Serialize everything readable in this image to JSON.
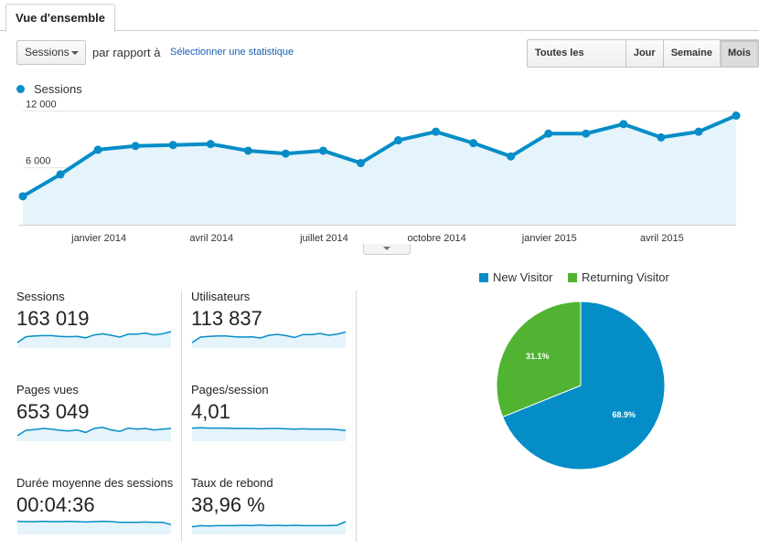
{
  "tab": {
    "label": "Vue d'ensemble"
  },
  "toolbar": {
    "metric_select": "Sessions",
    "compare_label": "par rapport à",
    "compare_link": "Sélectionner une statistique",
    "granularity": [
      {
        "label": "Toutes les heures",
        "active": false
      },
      {
        "label": "Jour",
        "active": false
      },
      {
        "label": "Semaine",
        "active": false
      },
      {
        "label": "Mois",
        "active": true
      }
    ]
  },
  "colors": {
    "accent": "#058dc7",
    "area": "#e5f3fa",
    "green": "#50b432"
  },
  "chart_data": [
    {
      "type": "line",
      "legend": "Sessions",
      "y_ticks": [
        {
          "value": 12000,
          "label": "12 000"
        },
        {
          "value": 6000,
          "label": "6 000"
        }
      ],
      "ylim": [
        0,
        12800
      ],
      "x_tick_labels": [
        {
          "index": 2,
          "label": "janvier 2014"
        },
        {
          "index": 5,
          "label": "avril 2014"
        },
        {
          "index": 8,
          "label": "juillet 2014"
        },
        {
          "index": 11,
          "label": "octobre 2014"
        },
        {
          "index": 14,
          "label": "janvier 2015"
        },
        {
          "index": 17,
          "label": "avril 2015"
        }
      ],
      "series": [
        {
          "values": [
            3000,
            5300,
            7900,
            8300,
            8400,
            8500,
            7800,
            7500,
            7800,
            6500,
            8900,
            9800,
            8600,
            7200,
            9600,
            9600,
            10600,
            9200,
            9800,
            11500
          ]
        }
      ]
    },
    {
      "type": "pie",
      "legend": [
        "New Visitor",
        "Returning Visitor"
      ],
      "slices": [
        {
          "name": "New Visitor",
          "value": 68.9,
          "label": "68.9%",
          "color": "#058dc7"
        },
        {
          "name": "Returning Visitor",
          "value": 31.1,
          "label": "31.1%",
          "color": "#50b432"
        }
      ]
    }
  ],
  "metrics": [
    {
      "label": "Sessions",
      "value": "163 019",
      "spark": [
        0.3,
        0.62,
        0.66,
        0.68,
        0.68,
        0.64,
        0.62,
        0.64,
        0.56,
        0.72,
        0.78,
        0.7,
        0.6,
        0.76,
        0.76,
        0.82,
        0.72,
        0.78,
        0.9
      ]
    },
    {
      "label": "Utilisateurs",
      "value": "113 837",
      "spark": [
        0.3,
        0.6,
        0.64,
        0.66,
        0.66,
        0.62,
        0.6,
        0.62,
        0.55,
        0.7,
        0.75,
        0.68,
        0.58,
        0.74,
        0.74,
        0.8,
        0.7,
        0.76,
        0.88
      ]
    },
    {
      "label": "Pages vues",
      "value": "653 049",
      "spark": [
        0.3,
        0.6,
        0.64,
        0.7,
        0.66,
        0.6,
        0.56,
        0.62,
        0.48,
        0.7,
        0.76,
        0.62,
        0.54,
        0.72,
        0.66,
        0.7,
        0.62,
        0.66,
        0.7
      ]
    },
    {
      "label": "Pages/session",
      "value": "4,01",
      "spark": [
        0.72,
        0.74,
        0.72,
        0.72,
        0.72,
        0.7,
        0.7,
        0.7,
        0.68,
        0.7,
        0.7,
        0.68,
        0.66,
        0.68,
        0.66,
        0.66,
        0.66,
        0.64,
        0.58
      ]
    },
    {
      "label": "Durée moyenne des sessions",
      "value": "00:04:36",
      "spark": [
        0.72,
        0.7,
        0.7,
        0.72,
        0.7,
        0.7,
        0.72,
        0.7,
        0.68,
        0.7,
        0.72,
        0.7,
        0.66,
        0.66,
        0.66,
        0.68,
        0.66,
        0.66,
        0.54
      ]
    },
    {
      "label": "Taux de rebond",
      "value": "38,96 %",
      "spark": [
        0.42,
        0.48,
        0.46,
        0.48,
        0.48,
        0.48,
        0.5,
        0.48,
        0.52,
        0.48,
        0.5,
        0.48,
        0.5,
        0.48,
        0.48,
        0.48,
        0.48,
        0.5,
        0.7
      ]
    }
  ]
}
